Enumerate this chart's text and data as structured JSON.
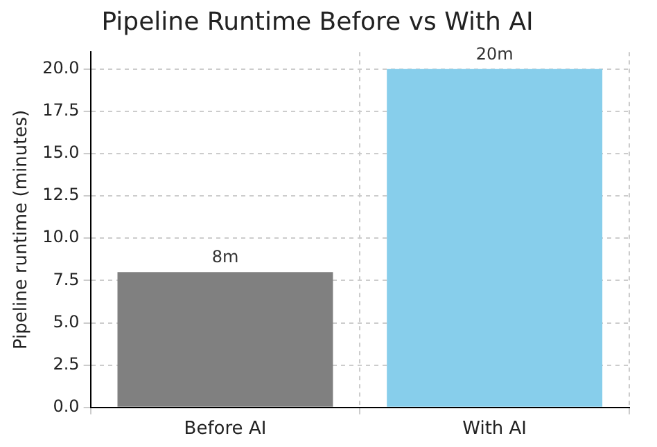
{
  "chart_data": {
    "type": "bar",
    "title": "Pipeline Runtime Before vs With AI",
    "ylabel": "Pipeline runtime (minutes)",
    "categories": [
      "Before AI",
      "With AI"
    ],
    "values": [
      8,
      20
    ],
    "colors": [
      "#808080",
      "#87ceeb"
    ],
    "value_labels": [
      "8m",
      "20m"
    ],
    "ylim": [
      0,
      21
    ],
    "yticks": [
      {
        "value": 0,
        "label": "0.0"
      },
      {
        "value": 2.5,
        "label": "2.5"
      },
      {
        "value": 5,
        "label": "5.0"
      },
      {
        "value": 7.5,
        "label": "7.5"
      },
      {
        "value": 10,
        "label": "10.0"
      },
      {
        "value": 12.5,
        "label": "12.5"
      },
      {
        "value": 15,
        "label": "15.0"
      },
      {
        "value": 17.5,
        "label": "17.5"
      },
      {
        "value": 20,
        "label": "20.0"
      }
    ],
    "grid": true
  }
}
